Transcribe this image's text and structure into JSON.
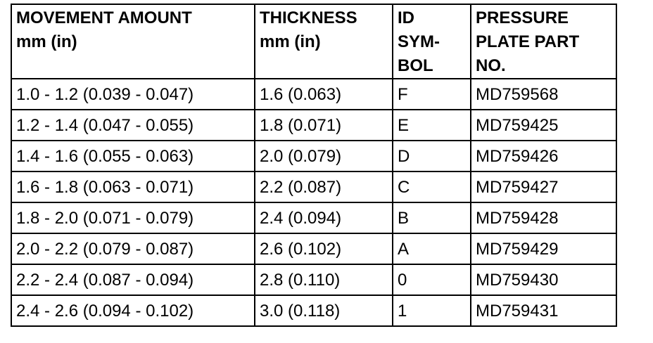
{
  "table": {
    "headers": [
      [
        "MOVEMENT AMOUNT",
        "mm (in)"
      ],
      [
        "THICKNESS",
        "mm (in)"
      ],
      [
        "ID",
        "SYM-",
        "BOL"
      ],
      [
        "PRESSURE",
        "PLATE PART",
        "NO."
      ]
    ],
    "rows": [
      [
        "1.0 - 1.2 (0.039 - 0.047)",
        "1.6 (0.063)",
        "F",
        "MD759568"
      ],
      [
        "1.2 - 1.4 (0.047 - 0.055)",
        "1.8 (0.071)",
        "E",
        "MD759425"
      ],
      [
        "1.4 - 1.6 (0.055 - 0.063)",
        "2.0 (0.079)",
        "D",
        "MD759426"
      ],
      [
        "1.6 - 1.8 (0.063 - 0.071)",
        "2.2 (0.087)",
        "C",
        "MD759427"
      ],
      [
        "1.8 - 2.0 (0.071 - 0.079)",
        "2.4 (0.094)",
        "B",
        "MD759428"
      ],
      [
        "2.0 - 2.2 (0.079 - 0.087)",
        "2.6 (0.102)",
        "A",
        "MD759429"
      ],
      [
        "2.2 - 2.4 (0.087 - 0.094)",
        "2.8 (0.110)",
        "0",
        "MD759430"
      ],
      [
        "2.4 - 2.6 (0.094 - 0.102)",
        "3.0 (0.118)",
        "1",
        "MD759431"
      ]
    ]
  }
}
